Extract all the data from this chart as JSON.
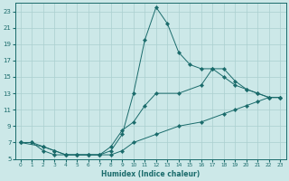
{
  "xlabel": "Humidex (Indice chaleur)",
  "bg_color": "#cce8e8",
  "grid_color": "#aacfcf",
  "line_color": "#1a6b6b",
  "xlim": [
    -0.5,
    23.5
  ],
  "ylim": [
    5,
    24
  ],
  "xticks": [
    0,
    1,
    2,
    3,
    4,
    5,
    6,
    7,
    8,
    9,
    10,
    11,
    12,
    13,
    14,
    15,
    16,
    17,
    18,
    19,
    20,
    21,
    22,
    23
  ],
  "yticks": [
    5,
    7,
    9,
    11,
    13,
    15,
    17,
    19,
    21,
    23
  ],
  "line1_x": [
    0,
    1,
    2,
    3,
    4,
    5,
    6,
    7,
    8,
    9,
    10,
    11,
    12,
    13,
    14,
    15,
    16,
    17,
    18,
    19,
    20,
    21,
    22,
    23
  ],
  "line1_y": [
    7,
    7,
    6,
    5.5,
    5.5,
    5.5,
    5.5,
    5.5,
    6,
    8,
    13,
    19.5,
    23.5,
    21.5,
    18,
    16.5,
    16,
    16,
    16,
    14.5,
    13.5,
    13,
    12.5,
    12.5
  ],
  "line2_x": [
    0,
    1,
    2,
    3,
    4,
    5,
    6,
    7,
    8,
    9,
    10,
    12,
    14,
    16,
    18,
    19,
    20,
    21,
    22,
    23
  ],
  "line2_y": [
    7,
    7,
    6.5,
    6,
    5.5,
    5.5,
    5.5,
    5.5,
    5.5,
    6,
    7,
    8,
    9,
    9.5,
    10.5,
    11,
    11.5,
    12,
    12.5,
    12.5
  ],
  "line3_x": [
    0,
    2,
    3,
    4,
    5,
    6,
    7,
    8,
    9,
    10,
    11,
    12,
    14,
    16,
    17,
    18,
    19,
    20,
    21,
    22,
    23
  ],
  "line3_y": [
    7,
    6.5,
    6,
    5.5,
    5.5,
    5.5,
    5.5,
    6.5,
    8.5,
    9.5,
    11.5,
    13,
    13,
    14,
    16,
    15,
    14,
    13.5,
    13,
    12.5,
    12.5
  ]
}
